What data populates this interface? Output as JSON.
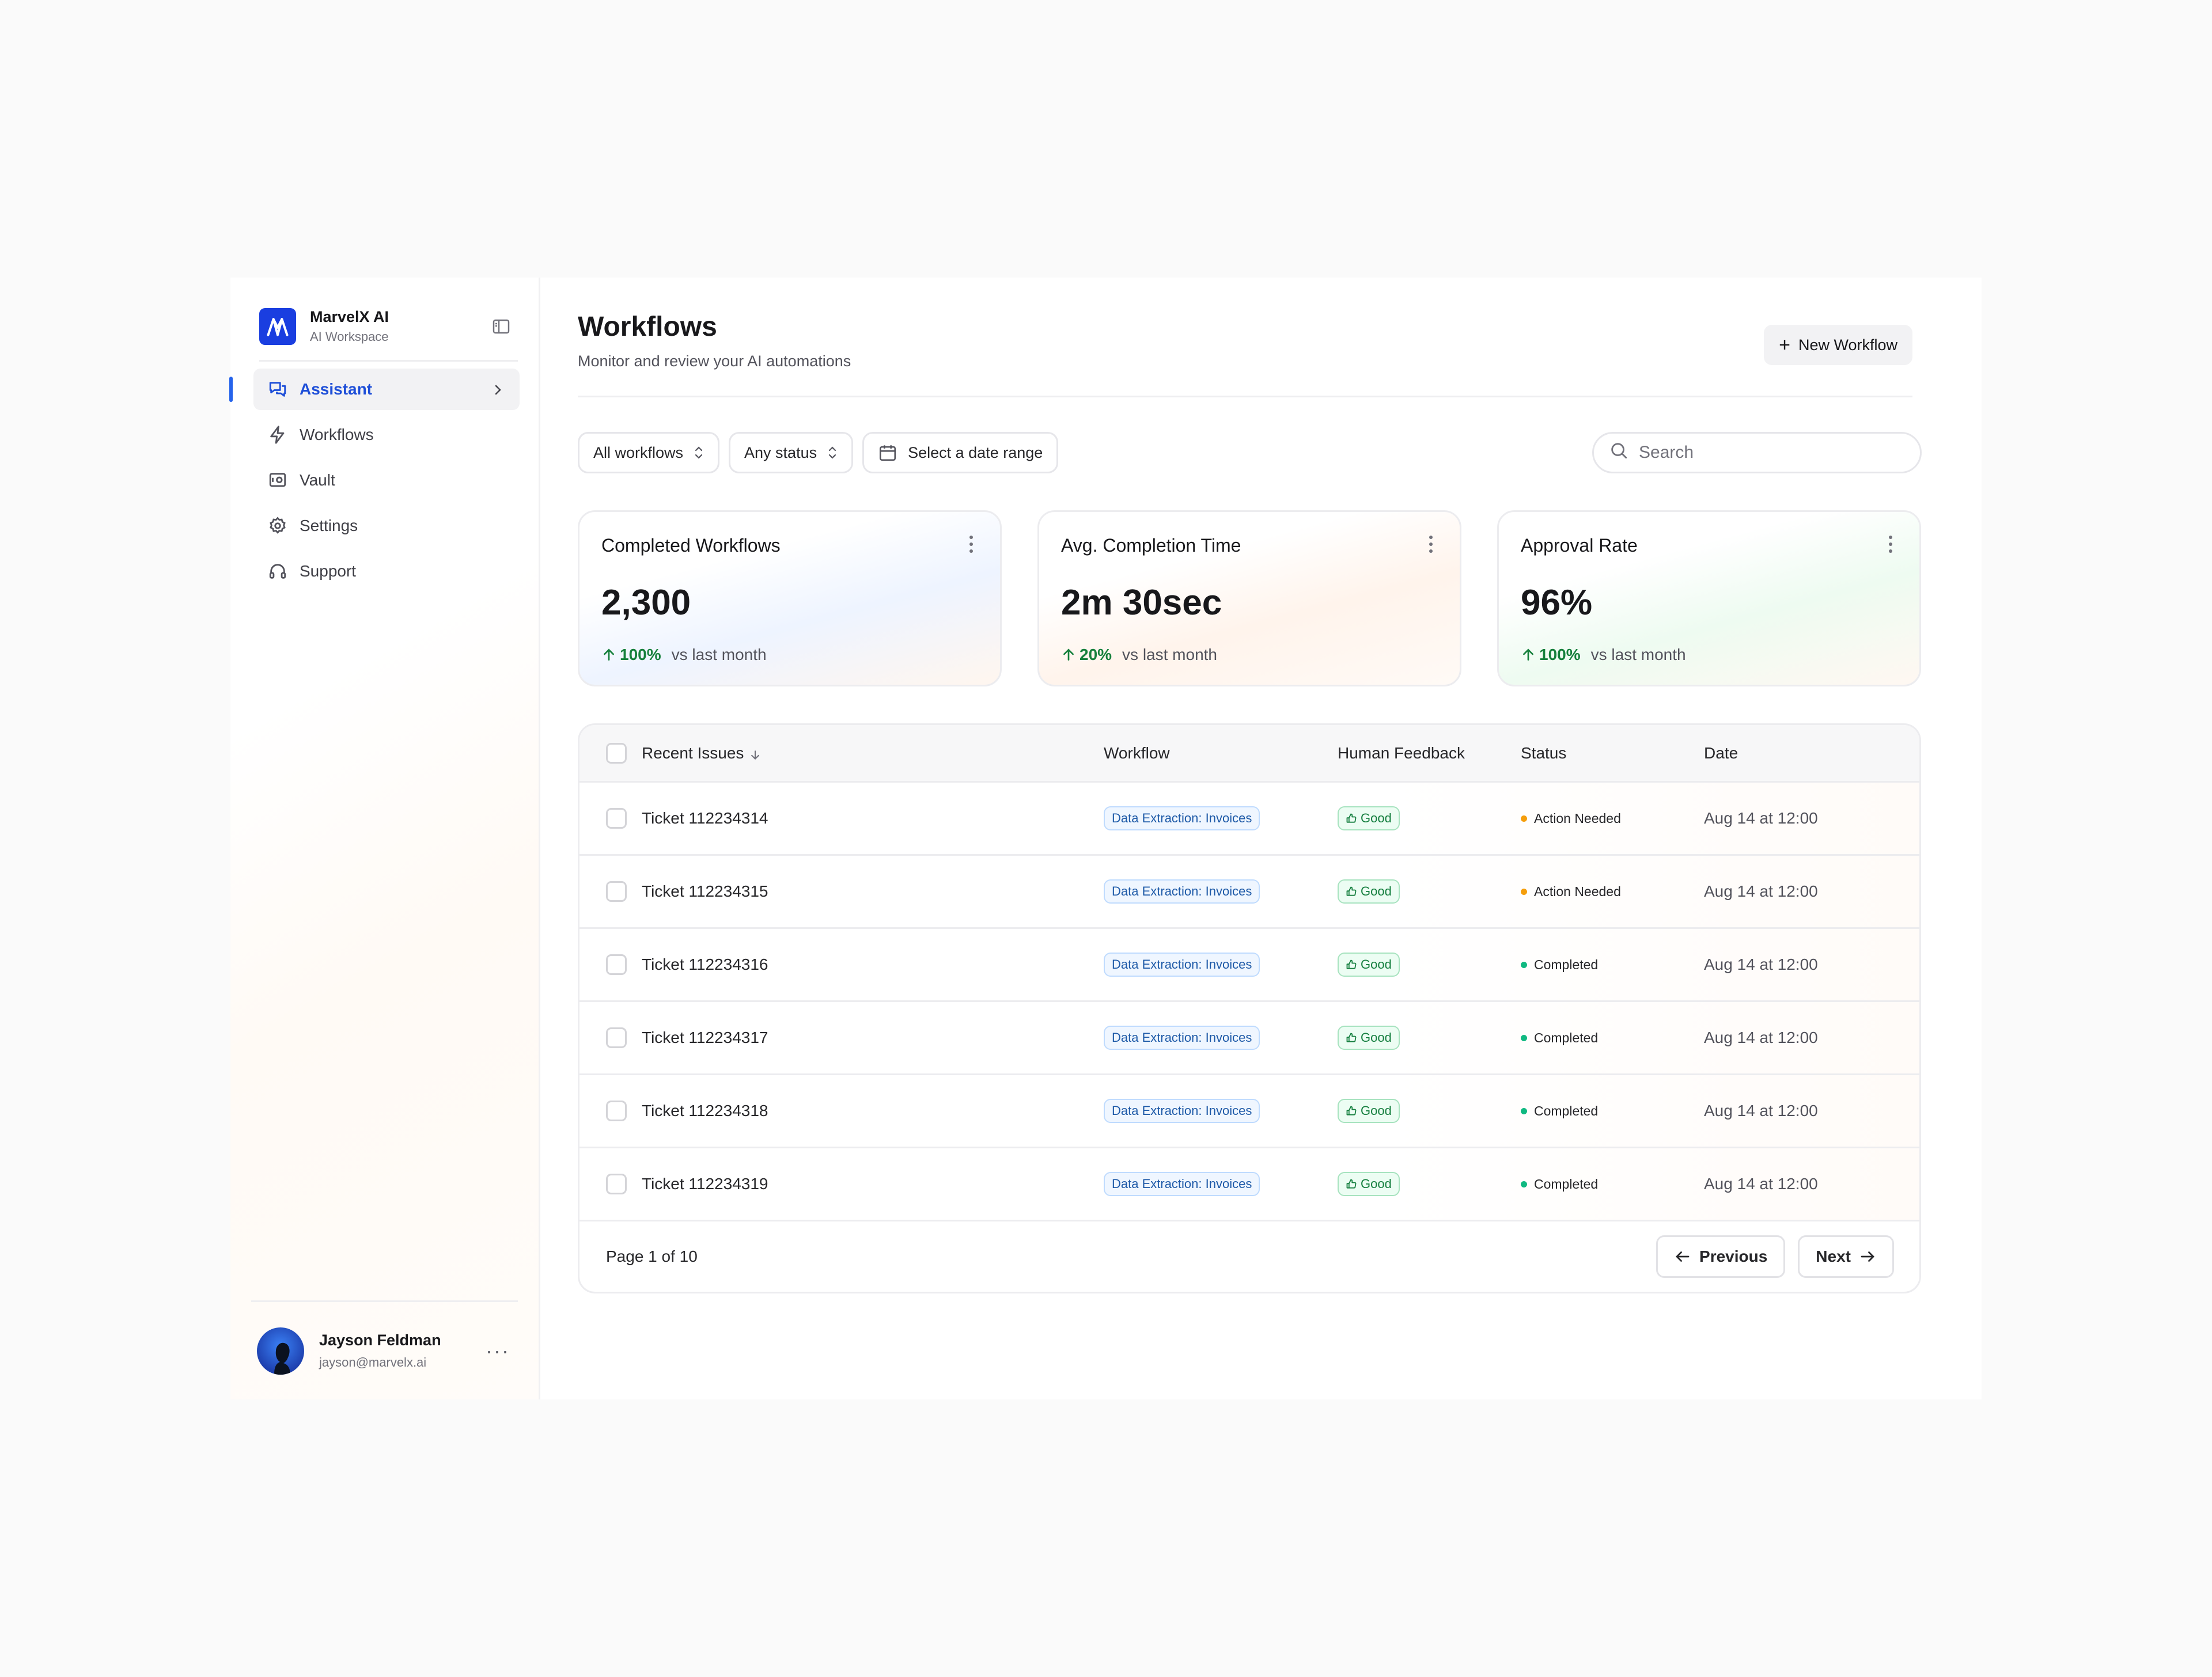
{
  "brand": {
    "name": "MarvelX AI",
    "subtitle": "AI Workspace",
    "accent": "#1a3ee0"
  },
  "sidebar": {
    "items": [
      {
        "label": "Assistant",
        "icon": "chat-icon",
        "active": true
      },
      {
        "label": "Workflows",
        "icon": "lightning-icon",
        "active": false
      },
      {
        "label": "Vault",
        "icon": "vault-icon",
        "active": false
      },
      {
        "label": "Settings",
        "icon": "gear-icon",
        "active": false
      },
      {
        "label": "Support",
        "icon": "headphones-icon",
        "active": false
      }
    ]
  },
  "user": {
    "name": "Jayson Feldman",
    "email": "jayson@marvelx.ai",
    "more": "···"
  },
  "header": {
    "title": "Workflows",
    "subtitle": "Monitor and review your AI automations",
    "new_button": "New Workflow"
  },
  "filters": {
    "workflow": "All workflows",
    "status": "Any status",
    "date": "Select a date range",
    "search_placeholder": "Search"
  },
  "stats": [
    {
      "title": "Completed Workflows",
      "value": "2,300",
      "delta": "100%",
      "vs": "vs last month"
    },
    {
      "title": "Avg. Completion Time",
      "value": "2m 30sec",
      "delta": "20%",
      "vs": "vs last month"
    },
    {
      "title": "Approval Rate",
      "value": "96%",
      "delta": "100%",
      "vs": "vs last month"
    }
  ],
  "table": {
    "columns": [
      "Recent Issues",
      "Workflow",
      "Human Feedback",
      "Status",
      "Date"
    ],
    "rows": [
      {
        "name": "Ticket 112234314",
        "workflow": "Data Extraction: Invoices",
        "feedback": "Good",
        "status": "Action Needed",
        "date": "Aug 14 at 12:00"
      },
      {
        "name": "Ticket 112234315",
        "workflow": "Data Extraction: Invoices",
        "feedback": "Good",
        "status": "Action Needed",
        "date": "Aug 14 at 12:00"
      },
      {
        "name": "Ticket 112234316",
        "workflow": "Data Extraction: Invoices",
        "feedback": "Good",
        "status": "Completed",
        "date": "Aug 14 at 12:00"
      },
      {
        "name": "Ticket 112234317",
        "workflow": "Data Extraction: Invoices",
        "feedback": "Good",
        "status": "Completed",
        "date": "Aug 14 at 12:00"
      },
      {
        "name": "Ticket 112234318",
        "workflow": "Data Extraction: Invoices",
        "feedback": "Good",
        "status": "Completed",
        "date": "Aug 14 at 12:00"
      },
      {
        "name": "Ticket 112234319",
        "workflow": "Data Extraction: Invoices",
        "feedback": "Good",
        "status": "Completed",
        "date": "Aug 14 at 12:00"
      }
    ],
    "status_colors": {
      "Action Needed": "#f59e0b",
      "Completed": "#10b981"
    },
    "pagination": {
      "label": "Page 1 of 10",
      "previous": "Previous",
      "next": "Next"
    }
  }
}
